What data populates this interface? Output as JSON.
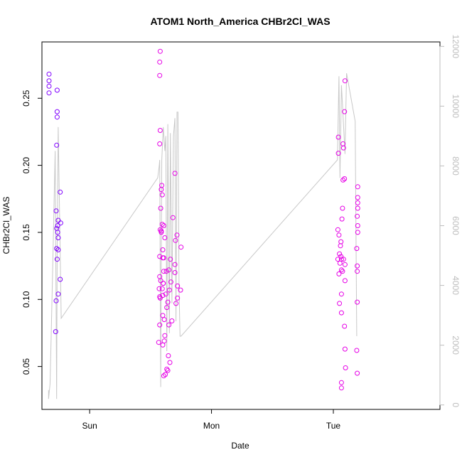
{
  "chart_data": {
    "type": "scatter",
    "title": "ATOM1 North_America CHBr2Cl_WAS",
    "xlabel": "Date",
    "ylabel": "CHBr2Cl_WAS",
    "x_unit": "hours from Sun 00:00 (local chart time)",
    "x_ticks": [
      {
        "label": "Sun",
        "x": 0
      },
      {
        "label": "Mon",
        "x": 24
      },
      {
        "label": "Tue",
        "x": 48
      }
    ],
    "xlim": [
      -9.4,
      69.0
    ],
    "ylim": [
      0.018,
      0.292
    ],
    "y_ticks": [
      0.05,
      0.1,
      0.15,
      0.2,
      0.25
    ],
    "y_tick_labels": [
      "0.05",
      "0.10",
      "0.15",
      "0.20",
      "0.25"
    ],
    "right_axis": {
      "range": [
        -150,
        12150
      ],
      "ticks": [
        0,
        2000,
        4000,
        6000,
        8000,
        10000,
        12000
      ],
      "tick_labels": [
        "0",
        "2000",
        "4000",
        "6000",
        "8000",
        "10000",
        "12000"
      ],
      "color": "#bdbdbd"
    },
    "grid": false,
    "colors": {
      "points_early": "#8000ff",
      "points_late": "#e600e6",
      "line": "#c8c8c8",
      "frame": "#000000"
    },
    "series": [
      {
        "kind": "points",
        "color": "#8000ff",
        "points": [
          [
            -8.0,
            0.268
          ],
          [
            -8.0,
            0.263
          ],
          [
            -8.0,
            0.259
          ],
          [
            -8.0,
            0.254
          ],
          [
            -6.4,
            0.256
          ],
          [
            -6.4,
            0.24
          ],
          [
            -6.4,
            0.236
          ],
          [
            -6.5,
            0.215
          ],
          [
            -5.8,
            0.18
          ],
          [
            -6.6,
            0.166
          ],
          [
            -6.2,
            0.159
          ],
          [
            -5.7,
            0.157
          ],
          [
            -6.3,
            0.155
          ],
          [
            -6.5,
            0.153
          ],
          [
            -6.3,
            0.15
          ],
          [
            -6.2,
            0.146
          ],
          [
            -6.5,
            0.138
          ],
          [
            -6.2,
            0.137
          ],
          [
            -6.4,
            0.13
          ],
          [
            -5.8,
            0.115
          ],
          [
            -6.2,
            0.104
          ],
          [
            -6.6,
            0.099
          ],
          [
            -6.7,
            0.076
          ]
        ]
      },
      {
        "kind": "points",
        "color": "#e600e6",
        "points": [
          [
            13.9,
            0.285
          ],
          [
            13.8,
            0.277
          ],
          [
            13.8,
            0.267
          ],
          [
            13.9,
            0.226
          ],
          [
            13.8,
            0.216
          ],
          [
            16.8,
            0.194
          ],
          [
            14.2,
            0.185
          ],
          [
            14.1,
            0.182
          ],
          [
            14.3,
            0.178
          ],
          [
            14.0,
            0.168
          ],
          [
            16.4,
            0.161
          ],
          [
            14.3,
            0.156
          ],
          [
            14.6,
            0.155
          ],
          [
            13.9,
            0.152
          ],
          [
            14.1,
            0.151
          ],
          [
            14.1,
            0.15
          ],
          [
            17.2,
            0.148
          ],
          [
            14.8,
            0.146
          ],
          [
            16.9,
            0.144
          ],
          [
            18.0,
            0.139
          ],
          [
            14.4,
            0.137
          ],
          [
            13.8,
            0.132
          ],
          [
            14.6,
            0.131
          ],
          [
            14.4,
            0.131
          ],
          [
            15.9,
            0.13
          ],
          [
            16.8,
            0.126
          ],
          [
            15.6,
            0.122
          ],
          [
            14.6,
            0.121
          ],
          [
            15.1,
            0.121
          ],
          [
            16.8,
            0.12
          ],
          [
            13.8,
            0.117
          ],
          [
            14.0,
            0.114
          ],
          [
            14.5,
            0.112
          ],
          [
            14.5,
            0.112
          ],
          [
            16.0,
            0.113
          ],
          [
            17.3,
            0.11
          ],
          [
            13.7,
            0.108
          ],
          [
            14.3,
            0.108
          ],
          [
            15.7,
            0.107
          ],
          [
            17.9,
            0.107
          ],
          [
            15.0,
            0.104
          ],
          [
            14.4,
            0.103
          ],
          [
            13.8,
            0.102
          ],
          [
            13.9,
            0.101
          ],
          [
            17.3,
            0.101
          ],
          [
            15.4,
            0.098
          ],
          [
            17.0,
            0.097
          ],
          [
            15.2,
            0.094
          ],
          [
            14.4,
            0.088
          ],
          [
            14.7,
            0.085
          ],
          [
            16.2,
            0.084
          ],
          [
            13.8,
            0.081
          ],
          [
            15.6,
            0.081
          ],
          [
            14.8,
            0.073
          ],
          [
            13.6,
            0.068
          ],
          [
            14.7,
            0.069
          ],
          [
            14.4,
            0.066
          ],
          [
            15.5,
            0.058
          ],
          [
            15.8,
            0.053
          ],
          [
            15.2,
            0.048
          ],
          [
            15.4,
            0.047
          ],
          [
            14.9,
            0.044
          ],
          [
            14.6,
            0.043
          ]
        ]
      },
      {
        "kind": "points",
        "color": "#e600e6",
        "points": [
          [
            50.3,
            0.263
          ],
          [
            50.2,
            0.24
          ],
          [
            49.0,
            0.221
          ],
          [
            49.9,
            0.216
          ],
          [
            50.0,
            0.213
          ],
          [
            49.0,
            0.209
          ],
          [
            50.2,
            0.19
          ],
          [
            49.9,
            0.189
          ],
          [
            52.8,
            0.184
          ],
          [
            52.8,
            0.176
          ],
          [
            52.8,
            0.172
          ],
          [
            49.8,
            0.168
          ],
          [
            52.8,
            0.168
          ],
          [
            52.7,
            0.162
          ],
          [
            49.7,
            0.16
          ],
          [
            52.8,
            0.155
          ],
          [
            48.9,
            0.152
          ],
          [
            52.8,
            0.15
          ],
          [
            49.1,
            0.148
          ],
          [
            49.5,
            0.143
          ],
          [
            49.4,
            0.14
          ],
          [
            52.6,
            0.138
          ],
          [
            49.2,
            0.134
          ],
          [
            49.5,
            0.132
          ],
          [
            49.6,
            0.13
          ],
          [
            48.9,
            0.13
          ],
          [
            50.0,
            0.13
          ],
          [
            49.3,
            0.127
          ],
          [
            52.7,
            0.125
          ],
          [
            50.3,
            0.126
          ],
          [
            49.6,
            0.122
          ],
          [
            49.8,
            0.121
          ],
          [
            52.7,
            0.121
          ],
          [
            49.1,
            0.119
          ],
          [
            49.6,
            0.104
          ],
          [
            50.3,
            0.114
          ],
          [
            49.2,
            0.097
          ],
          [
            52.7,
            0.098
          ],
          [
            49.6,
            0.09
          ],
          [
            50.2,
            0.08
          ],
          [
            50.3,
            0.063
          ],
          [
            52.6,
            0.062
          ],
          [
            50.4,
            0.049
          ],
          [
            52.7,
            0.045
          ],
          [
            49.6,
            0.038
          ],
          [
            49.6,
            0.034
          ]
        ]
      },
      {
        "kind": "line",
        "color": "#c8c8c8",
        "axis": "right",
        "points": [
          [
            -8.1,
            500
          ],
          [
            -8.1,
            200
          ],
          [
            -7.8,
            700
          ],
          [
            -7.6,
            2200
          ],
          [
            -7.2,
            5200
          ],
          [
            -6.8,
            8500
          ],
          [
            -6.5,
            200
          ],
          [
            -6.4,
            5000
          ],
          [
            -6.2,
            9300
          ],
          [
            -5.7,
            4000
          ],
          [
            -5.6,
            2900
          ],
          [
            13.4,
            7600
          ],
          [
            13.7,
            8000
          ],
          [
            13.8,
            8200
          ],
          [
            14.0,
            600
          ],
          [
            14.2,
            8200
          ],
          [
            14.5,
            9300
          ],
          [
            14.8,
            8500
          ],
          [
            15.0,
            9000
          ],
          [
            15.2,
            1800
          ],
          [
            15.4,
            9400
          ],
          [
            15.7,
            2400
          ],
          [
            15.9,
            9100
          ],
          [
            16.2,
            3400
          ],
          [
            16.5,
            9000
          ],
          [
            16.8,
            9600
          ],
          [
            17.0,
            2800
          ],
          [
            17.2,
            9800
          ],
          [
            17.4,
            9800
          ],
          [
            17.6,
            3900
          ],
          [
            17.8,
            2300
          ],
          [
            18.0,
            2300
          ],
          [
            48.8,
            8200
          ],
          [
            49.1,
            11000
          ],
          [
            49.3,
            7600
          ],
          [
            49.6,
            10700
          ],
          [
            49.9,
            9700
          ],
          [
            50.3,
            8400
          ],
          [
            50.6,
            11100
          ],
          [
            52.3,
            9500
          ],
          [
            52.6,
            2300
          ]
        ]
      }
    ]
  }
}
